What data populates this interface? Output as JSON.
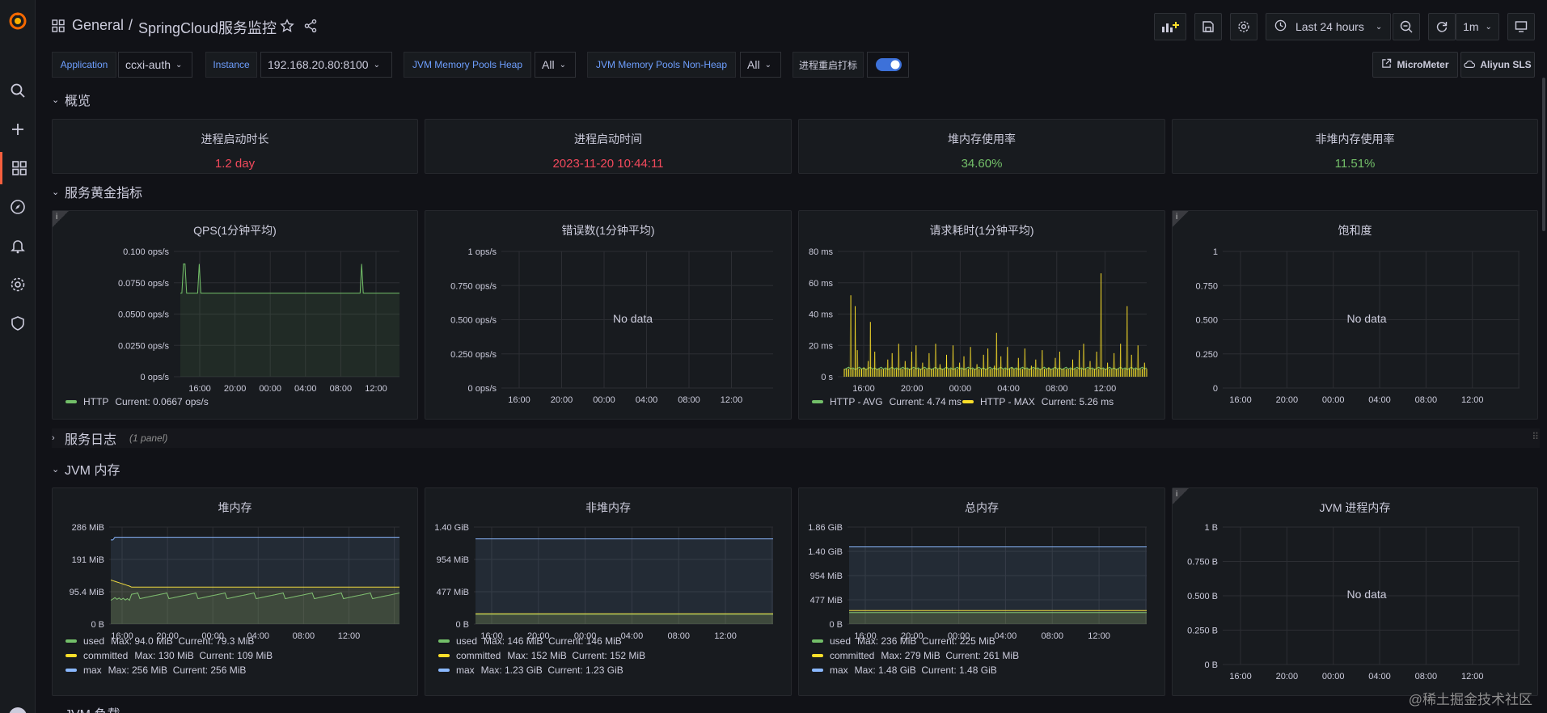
{
  "breadcrumb": {
    "folder": "General",
    "sep": "/",
    "title": "SpringCloud服务监控"
  },
  "time_picker": {
    "range": "Last 24 hours",
    "refresh": "1m"
  },
  "variables": [
    {
      "label": "Application",
      "value": "ccxi-auth"
    },
    {
      "label": "Instance",
      "value": "192.168.20.80:8100"
    },
    {
      "label": "JVM Memory Pools Heap",
      "value": "All"
    },
    {
      "label": "JVM Memory Pools Non-Heap",
      "value": "All"
    },
    {
      "label": "进程重启打标"
    }
  ],
  "links": {
    "micrometer": "MicroMeter",
    "aliyun": "Aliyun SLS"
  },
  "rows": {
    "overview": "概览",
    "golden": "服务黄金指标",
    "logs": "服务日志",
    "logs_count": "(1 panel)",
    "jvm_mem": "JVM 内存",
    "jvm_load": "JVM 负载"
  },
  "stats": [
    {
      "title": "进程启动时长",
      "value": "1.2 day",
      "color": "#f2495c"
    },
    {
      "title": "进程启动时间",
      "value": "2023-11-20 10:44:11",
      "color": "#f2495c"
    },
    {
      "title": "堆内存使用率",
      "value": "34.60%",
      "color": "#73bf69"
    },
    {
      "title": "非堆内存使用率",
      "value": "11.51%",
      "color": "#73bf69"
    }
  ],
  "colors": {
    "green": "#73bf69",
    "yellow": "#fade2a",
    "cyan": "#8ab8ff",
    "orange": "#f2cc0c"
  },
  "x_ticks": [
    "16:00",
    "20:00",
    "00:00",
    "04:00",
    "08:00",
    "12:00"
  ],
  "nodata": "No data",
  "chart_data": [
    {
      "id": "qps",
      "type": "line",
      "title": "QPS(1分钟平均)",
      "yticks": [
        "0.100 ops/s",
        "0.0750 ops/s",
        "0.0500 ops/s",
        "0.0250 ops/s",
        "0 ops/s"
      ],
      "ylim": [
        0,
        0.1
      ],
      "series": [
        {
          "name": "HTTP",
          "legend": "Current: 0.0667 ops/s",
          "color": "#73bf69"
        }
      ]
    },
    {
      "id": "err",
      "type": "line",
      "title": "错误数(1分钟平均)",
      "yticks": [
        "1 ops/s",
        "0.750 ops/s",
        "0.500 ops/s",
        "0.250 ops/s",
        "0 ops/s"
      ],
      "ylim": [
        0,
        1
      ],
      "series": []
    },
    {
      "id": "lat",
      "type": "line",
      "title": "请求耗时(1分钟平均)",
      "yticks": [
        "80 ms",
        "60 ms",
        "40 ms",
        "20 ms",
        "0 s"
      ],
      "ylim": [
        0,
        80
      ],
      "series": [
        {
          "name": "HTTP - AVG",
          "legend": "Current: 4.74 ms",
          "color": "#73bf69"
        },
        {
          "name": "HTTP - MAX",
          "legend": "Current: 5.26 ms",
          "color": "#fade2a"
        }
      ]
    },
    {
      "id": "sat",
      "type": "line",
      "title": "饱和度",
      "yticks": [
        "1",
        "0.750",
        "0.500",
        "0.250",
        "0"
      ],
      "ylim": [
        0,
        1
      ],
      "series": []
    },
    {
      "id": "heap",
      "type": "line",
      "title": "堆内存",
      "yticks": [
        "286 MiB",
        "191 MiB",
        "95.4 MiB",
        "0 B"
      ],
      "ylim": [
        0,
        286
      ],
      "series": [
        {
          "name": "used",
          "legend": "Max: 94.0 MiB  Current: 79.3 MiB",
          "color": "#73bf69"
        },
        {
          "name": "committed",
          "legend": "Max: 130 MiB  Current: 109 MiB",
          "color": "#fade2a"
        },
        {
          "name": "max",
          "legend": "Max: 256 MiB  Current: 256 MiB",
          "color": "#8ab8ff"
        }
      ]
    },
    {
      "id": "nonheap",
      "type": "line",
      "title": "非堆内存",
      "yticks": [
        "1.40 GiB",
        "954 MiB",
        "477 MiB",
        "0 B"
      ],
      "ylim": [
        0,
        1.4
      ],
      "series": [
        {
          "name": "used",
          "legend": "Max: 146 MiB  Current: 146 MiB",
          "color": "#73bf69"
        },
        {
          "name": "committed",
          "legend": "Max: 152 MiB  Current: 152 MiB",
          "color": "#fade2a"
        },
        {
          "name": "max",
          "legend": "Max: 1.23 GiB  Current: 1.23 GiB",
          "color": "#8ab8ff"
        }
      ]
    },
    {
      "id": "total",
      "type": "line",
      "title": "总内存",
      "yticks": [
        "1.86 GiB",
        "1.40 GiB",
        "954 MiB",
        "477 MiB",
        "0 B"
      ],
      "ylim": [
        0,
        1.86
      ],
      "series": [
        {
          "name": "used",
          "legend": "Max: 236 MiB  Current: 225 MiB",
          "color": "#73bf69"
        },
        {
          "name": "committed",
          "legend": "Max: 279 MiB  Current: 261 MiB",
          "color": "#fade2a"
        },
        {
          "name": "max",
          "legend": "Max: 1.48 GiB  Current: 1.48 GiB",
          "color": "#8ab8ff"
        }
      ]
    },
    {
      "id": "proc",
      "type": "line",
      "title": "JVM 进程内存",
      "yticks": [
        "1 B",
        "0.750 B",
        "0.500 B",
        "0.250 B",
        "0 B"
      ],
      "ylim": [
        0,
        1
      ],
      "series": []
    }
  ],
  "watermark": "@稀土掘金技术社区"
}
